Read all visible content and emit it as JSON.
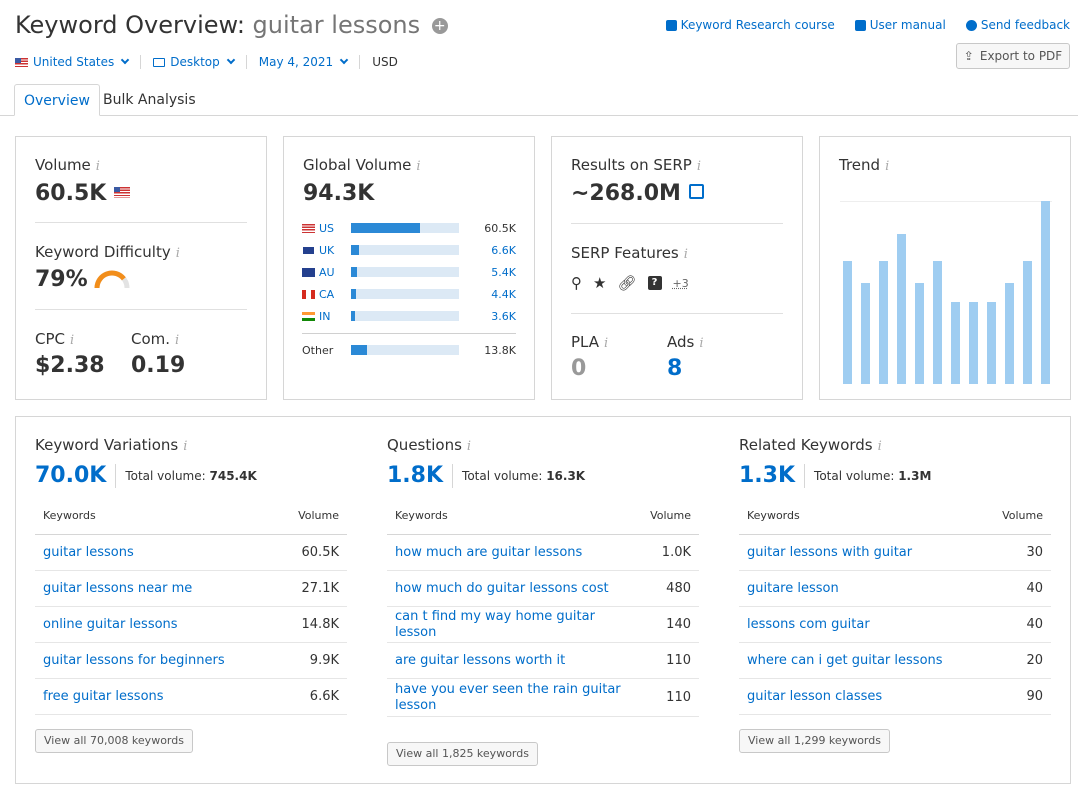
{
  "header": {
    "title_prefix": "Keyword Overview:",
    "keyword": "guitar lessons",
    "links": [
      "Keyword Research course",
      "User manual",
      "Send feedback"
    ],
    "export_label": "Export to PDF"
  },
  "filters": {
    "country": "United States",
    "device": "Desktop",
    "date": "May 4, 2021",
    "currency": "USD"
  },
  "tabs": [
    "Overview",
    "Bulk Analysis"
  ],
  "volume_card": {
    "title": "Volume",
    "value": "60.5K",
    "kd_title": "Keyword Difficulty",
    "kd_value": "79%",
    "kd_fraction": 0.79,
    "cpc_title": "CPC",
    "cpc_value": "$2.38",
    "com_title": "Com.",
    "com_value": "0.19"
  },
  "global_volume": {
    "title": "Global Volume",
    "value": "94.3K",
    "rows": [
      {
        "cc": "US",
        "value": "60.5K",
        "share": 0.64
      },
      {
        "cc": "UK",
        "value": "6.6K",
        "share": 0.07
      },
      {
        "cc": "AU",
        "value": "5.4K",
        "share": 0.06
      },
      {
        "cc": "CA",
        "value": "4.4K",
        "share": 0.05
      },
      {
        "cc": "IN",
        "value": "3.6K",
        "share": 0.04
      }
    ],
    "other_label": "Other",
    "other_value": "13.8K",
    "other_share": 0.15
  },
  "serp_card": {
    "title": "Results on SERP",
    "value": "~268.0M",
    "features_title": "SERP Features",
    "features_more": "+3",
    "pla_title": "PLA",
    "pla_value": "0",
    "ads_title": "Ads",
    "ads_value": "8"
  },
  "trend": {
    "title": "Trend",
    "values": [
      0.67,
      0.55,
      0.67,
      0.82,
      0.55,
      0.67,
      0.45,
      0.45,
      0.45,
      0.55,
      0.67,
      1.0
    ]
  },
  "variations": {
    "title": "Keyword Variations",
    "count": "70.0K",
    "total_label": "Total volume:",
    "total_value": "745.4K",
    "col_kw": "Keywords",
    "col_vol": "Volume",
    "rows": [
      {
        "k": "guitar lessons",
        "v": "60.5K"
      },
      {
        "k": "guitar lessons near me",
        "v": "27.1K"
      },
      {
        "k": "online guitar lessons",
        "v": "14.8K"
      },
      {
        "k": "guitar lessons for beginners",
        "v": "9.9K"
      },
      {
        "k": "free guitar lessons",
        "v": "6.6K"
      }
    ],
    "view_all": "View all 70,008 keywords"
  },
  "questions": {
    "title": "Questions",
    "count": "1.8K",
    "total_label": "Total volume:",
    "total_value": "16.3K",
    "col_kw": "Keywords",
    "col_vol": "Volume",
    "rows": [
      {
        "k": "how much are guitar lessons",
        "v": "1.0K"
      },
      {
        "k": "how much do guitar lessons cost",
        "v": "480"
      },
      {
        "k": "can t find my way home guitar lesson",
        "v": "140"
      },
      {
        "k": "are guitar lessons worth it",
        "v": "110"
      },
      {
        "k": "have you ever seen the rain guitar lesson",
        "v": "110"
      }
    ],
    "view_all": "View all 1,825 keywords"
  },
  "related": {
    "title": "Related Keywords",
    "count": "1.3K",
    "total_label": "Total volume:",
    "total_value": "1.3M",
    "col_kw": "Keywords",
    "col_vol": "Volume",
    "rows": [
      {
        "k": "guitar lessons with guitar",
        "v": "30"
      },
      {
        "k": "guitare lesson",
        "v": "40"
      },
      {
        "k": "lessons com guitar",
        "v": "40"
      },
      {
        "k": "where can i get guitar lessons",
        "v": "20"
      },
      {
        "k": "guitar lesson classes",
        "v": "90"
      }
    ],
    "view_all": "View all 1,299 keywords"
  }
}
